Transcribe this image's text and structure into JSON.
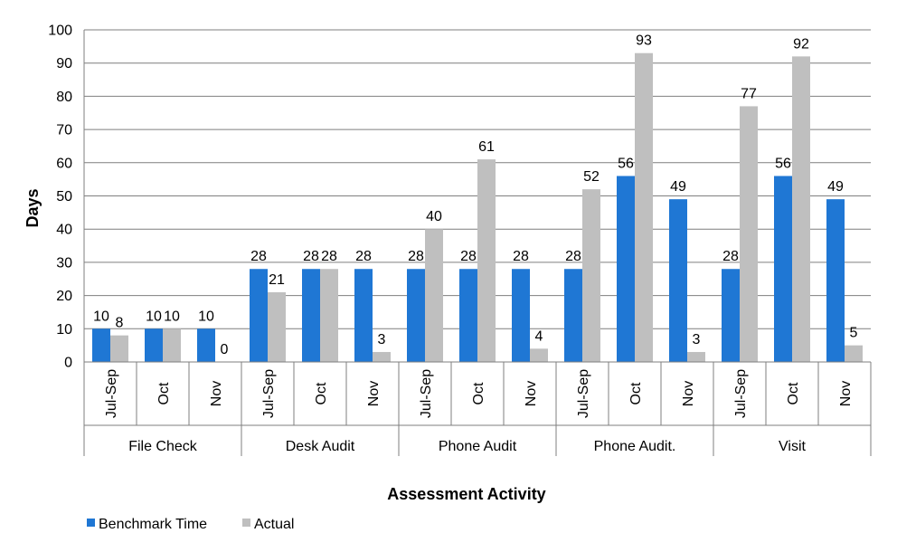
{
  "chart_data": {
    "type": "bar",
    "title": "",
    "xlabel": "Assessment Activity",
    "ylabel": "Days",
    "ylim": [
      0,
      100
    ],
    "yticks": [
      0,
      10,
      20,
      30,
      40,
      50,
      60,
      70,
      80,
      90,
      100
    ],
    "grid": true,
    "legend_position": "bottom-left",
    "groups": [
      {
        "name": "File Check",
        "categories": [
          "Jul-Sep",
          "Oct",
          "Nov"
        ]
      },
      {
        "name": "Desk Audit",
        "categories": [
          "Jul-Sep",
          "Oct",
          "Nov"
        ]
      },
      {
        "name": "Phone Audit",
        "categories": [
          "Jul-Sep",
          "Oct",
          "Nov"
        ]
      },
      {
        "name": "Phone Audit.",
        "categories": [
          "Jul-Sep",
          "Oct",
          "Nov"
        ]
      },
      {
        "name": "Visit",
        "categories": [
          "Jul-Sep",
          "Oct",
          "Nov"
        ]
      }
    ],
    "series": [
      {
        "name": "Benchmark Time",
        "color": "#1f77d4",
        "values": [
          10,
          10,
          10,
          28,
          28,
          28,
          28,
          28,
          28,
          28,
          56,
          49,
          28,
          56,
          49
        ]
      },
      {
        "name": "Actual",
        "color": "#bfbfbf",
        "values": [
          8,
          10,
          0,
          21,
          28,
          3,
          40,
          61,
          4,
          52,
          93,
          3,
          77,
          92,
          5
        ]
      }
    ]
  }
}
